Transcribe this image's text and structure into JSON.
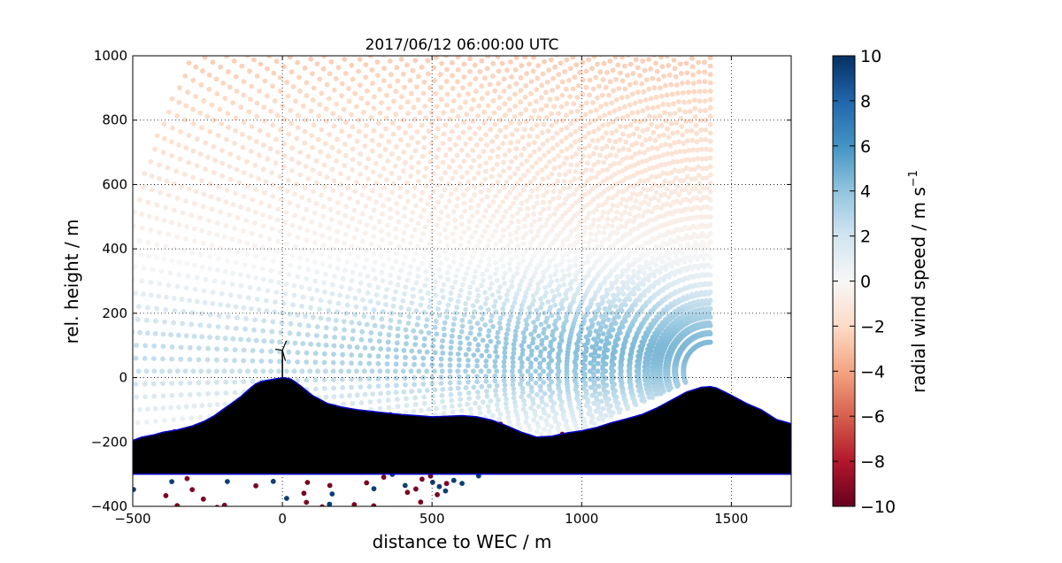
{
  "chart_data": {
    "type": "scatter",
    "title": "2017/06/12 06:00:00 UTC",
    "xlabel": "distance to WEC / m",
    "ylabel": "rel. height / m",
    "xlim": [
      -500,
      1700
    ],
    "ylim": [
      -400,
      1000
    ],
    "xticks": [
      -500,
      0,
      500,
      1000,
      1500
    ],
    "yticks": [
      -400,
      -200,
      0,
      200,
      400,
      600,
      800,
      1000
    ],
    "xtick_labels": [
      "−500",
      "0",
      "500",
      "1000",
      "1500"
    ],
    "ytick_labels": [
      "−400",
      "−200",
      "0",
      "200",
      "400",
      "600",
      "800",
      "1000"
    ],
    "grid": true,
    "colormap": "RdBu",
    "colorbar": {
      "label": "radial wind speed / m s",
      "label_superscript": "−1",
      "range": [
        -10,
        10
      ],
      "ticks": [
        10,
        8,
        6,
        4,
        2,
        0,
        -2,
        -4,
        -6,
        -8,
        -10
      ],
      "tick_labels": [
        "10",
        "8",
        "6",
        "4",
        "2",
        "0",
        "−2",
        "−4",
        "−6",
        "−8",
        "−10"
      ]
    },
    "lidar_origin": [
      1430,
      20
    ],
    "scan_max_range_m": 2000,
    "wind_field_description_values": {
      "low_level_jet_max_ms": 4.5,
      "low_level_jet_height_m": 80,
      "upper_level_min_ms": -2.5
    },
    "terrain_profile": {
      "x": [
        -500,
        -470,
        -430,
        -400,
        -350,
        -300,
        -260,
        -230,
        -200,
        -170,
        -140,
        -110,
        -90,
        -70,
        -50,
        -30,
        -10,
        0,
        10,
        30,
        60,
        100,
        150,
        200,
        250,
        300,
        350,
        400,
        450,
        500,
        550,
        600,
        650,
        700,
        750,
        800,
        850,
        900,
        950,
        1000,
        1050,
        1100,
        1150,
        1200,
        1250,
        1300,
        1350,
        1400,
        1430,
        1450,
        1500,
        1550,
        1600,
        1650,
        1700
      ],
      "y": [
        -195,
        -185,
        -178,
        -170,
        -162,
        -150,
        -135,
        -120,
        -100,
        -80,
        -60,
        -35,
        -20,
        -12,
        -8,
        -5,
        -2,
        0,
        -1,
        -5,
        -25,
        -55,
        -80,
        -92,
        -100,
        -105,
        -110,
        -115,
        -118,
        -122,
        -120,
        -118,
        -122,
        -132,
        -150,
        -170,
        -185,
        -182,
        -172,
        -165,
        -155,
        -140,
        -128,
        -115,
        -95,
        -70,
        -45,
        -30,
        -28,
        -32,
        -55,
        -80,
        -100,
        -130,
        -143
      ]
    },
    "terrain_base": -300,
    "terrain_color": "#000000",
    "terrain_edge_color": "#0000cc",
    "turbine_position": [
      0,
      0
    ],
    "turbine_hub_height_m": 85,
    "turbine_rotor_radius_m": 40
  }
}
